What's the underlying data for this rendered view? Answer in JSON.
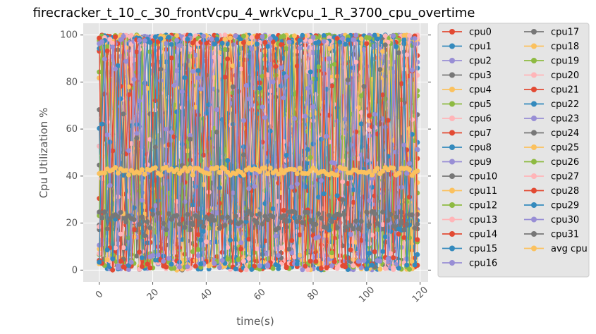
{
  "chart_data": {
    "type": "line",
    "title": "firecracker_t_10_c_30_frontVcpu_4_wrkVcpu_1_R_3700_cpu_overtime",
    "xlabel": "time(s)",
    "ylabel": "Cpu Utilization %",
    "xlim": [
      -6,
      123
    ],
    "ylim": [
      -5,
      105
    ],
    "x_ticks": [
      0,
      20,
      40,
      60,
      80,
      100,
      120
    ],
    "y_ticks": [
      0,
      20,
      40,
      60,
      80,
      100
    ],
    "x_values": "0..119 step 1",
    "grid": true,
    "legend_position": "right",
    "series": [
      {
        "name": "cpu0",
        "color": "#E24A33",
        "behavior": "noisy 0-100, mean ~45"
      },
      {
        "name": "cpu1",
        "color": "#348ABD",
        "behavior": "noisy 0-100"
      },
      {
        "name": "cpu2",
        "color": "#988ED5",
        "behavior": "noisy 0-100"
      },
      {
        "name": "cpu3",
        "color": "#777777",
        "behavior": "noisy 0-100"
      },
      {
        "name": "cpu4",
        "color": "#FBC15E",
        "behavior": "noisy 0-100"
      },
      {
        "name": "cpu5",
        "color": "#8EBA42",
        "behavior": "noisy 0-100"
      },
      {
        "name": "cpu6",
        "color": "#FFB5B8",
        "behavior": "noisy 0-100"
      },
      {
        "name": "cpu7",
        "color": "#E24A33",
        "behavior": "noisy 0-100"
      },
      {
        "name": "cpu8",
        "color": "#348ABD",
        "behavior": "noisy 0-100"
      },
      {
        "name": "cpu9",
        "color": "#988ED5",
        "behavior": "noisy 0-100"
      },
      {
        "name": "cpu10",
        "color": "#777777",
        "behavior": "noisy 0-100"
      },
      {
        "name": "cpu11",
        "color": "#FBC15E",
        "behavior": "noisy 0-100"
      },
      {
        "name": "cpu12",
        "color": "#8EBA42",
        "behavior": "noisy 0-100"
      },
      {
        "name": "cpu13",
        "color": "#FFB5B8",
        "behavior": "noisy 0-100"
      },
      {
        "name": "cpu14",
        "color": "#E24A33",
        "behavior": "noisy 0-100"
      },
      {
        "name": "cpu15",
        "color": "#348ABD",
        "behavior": "noisy 0-100"
      },
      {
        "name": "cpu16",
        "color": "#988ED5",
        "behavior": "noisy 0-100"
      },
      {
        "name": "cpu17",
        "color": "#777777",
        "behavior": "mostly ~20 with spikes"
      },
      {
        "name": "cpu18",
        "color": "#FBC15E",
        "behavior": "noisy 0-100"
      },
      {
        "name": "cpu19",
        "color": "#8EBA42",
        "behavior": "noisy 0-100"
      },
      {
        "name": "cpu20",
        "color": "#FFB5B8",
        "behavior": "noisy 0-100"
      },
      {
        "name": "cpu21",
        "color": "#E24A33",
        "behavior": "noisy 0-100"
      },
      {
        "name": "cpu22",
        "color": "#348ABD",
        "behavior": "noisy 0-100"
      },
      {
        "name": "cpu23",
        "color": "#988ED5",
        "behavior": "noisy 0-100"
      },
      {
        "name": "cpu24",
        "color": "#777777",
        "behavior": "mostly ~20"
      },
      {
        "name": "cpu25",
        "color": "#FBC15E",
        "behavior": "noisy 0-100"
      },
      {
        "name": "cpu26",
        "color": "#8EBA42",
        "behavior": "noisy 0-100"
      },
      {
        "name": "cpu27",
        "color": "#FFB5B8",
        "behavior": "noisy 0-100"
      },
      {
        "name": "cpu28",
        "color": "#E24A33",
        "behavior": "noisy 0-100"
      },
      {
        "name": "cpu29",
        "color": "#348ABD",
        "behavior": "noisy 0-100"
      },
      {
        "name": "cpu30",
        "color": "#988ED5",
        "behavior": "noisy 0-100"
      },
      {
        "name": "cpu31",
        "color": "#777777",
        "behavior": "mostly ~20"
      },
      {
        "name": "avg cpu",
        "color": "#FBC15E",
        "behavior": "flat ~42 (range 40-44)"
      }
    ]
  }
}
